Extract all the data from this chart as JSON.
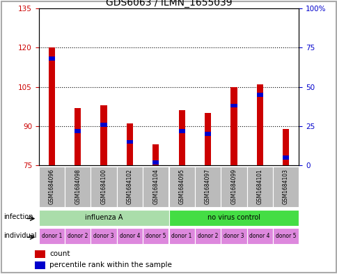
{
  "title": "GDS6063 / ILMN_1655039",
  "samples": [
    "GSM1684096",
    "GSM1684098",
    "GSM1684100",
    "GSM1684102",
    "GSM1684104",
    "GSM1684095",
    "GSM1684097",
    "GSM1684099",
    "GSM1684101",
    "GSM1684103"
  ],
  "count_values": [
    120,
    97,
    98,
    91,
    83,
    96,
    95,
    105,
    106,
    89
  ],
  "percentile_values": [
    68,
    22,
    26,
    15,
    2,
    22,
    20,
    38,
    45,
    5
  ],
  "ylim_left": [
    75,
    135
  ],
  "ylim_right": [
    0,
    100
  ],
  "yticks_left": [
    75,
    90,
    105,
    120,
    135
  ],
  "yticks_right": [
    0,
    25,
    50,
    75,
    100
  ],
  "ytick_labels_left": [
    "75",
    "90",
    "105",
    "120",
    "135"
  ],
  "ytick_labels_right": [
    "0",
    "25",
    "50",
    "75",
    "100%"
  ],
  "hlines": [
    90,
    105,
    120
  ],
  "bar_color": "#cc0000",
  "blue_color": "#0000cc",
  "infection_groups": [
    {
      "label": "influenza A",
      "start": 0,
      "end": 5,
      "color": "#aaddaa"
    },
    {
      "label": "no virus control",
      "start": 5,
      "end": 10,
      "color": "#44dd44"
    }
  ],
  "individual_labels": [
    "donor 1",
    "donor 2",
    "donor 3",
    "donor 4",
    "donor 5",
    "donor 1",
    "donor 2",
    "donor 3",
    "donor 4",
    "donor 5"
  ],
  "individual_color": "#dd88dd",
  "sample_bg_color": "#bbbbbb",
  "bar_width": 0.25,
  "legend_count_label": "count",
  "legend_percentile_label": "percentile rank within the sample",
  "left_tick_color": "#cc0000",
  "right_tick_color": "#0000cc",
  "title_fontsize": 10,
  "tick_fontsize": 7.5,
  "label_fontsize": 7.5,
  "fig_bg": "#e8e8e8"
}
